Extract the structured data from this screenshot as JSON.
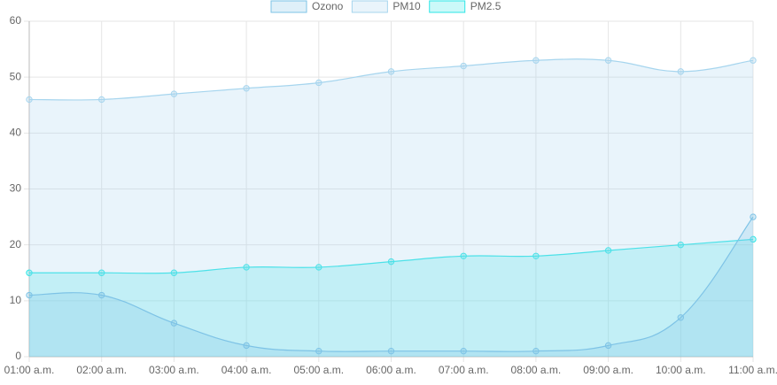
{
  "chart_data": {
    "type": "line",
    "categories": [
      "01:00 a.m.",
      "02:00 a.m.",
      "03:00 a.m.",
      "04:00 a.m.",
      "05:00 a.m.",
      "06:00 a.m.",
      "07:00 a.m.",
      "08:00 a.m.",
      "09:00 a.m.",
      "10:00 a.m.",
      "11:00 a.m."
    ],
    "series": [
      {
        "name": "Ozono",
        "color": "#7ec3e6",
        "values": [
          11,
          11,
          6,
          2,
          1,
          1,
          1,
          1,
          2,
          7,
          25
        ]
      },
      {
        "name": "PM10",
        "color": "#a6d5ee",
        "values": [
          46,
          46,
          47,
          48,
          49,
          51,
          52,
          53,
          53,
          51,
          53
        ]
      },
      {
        "name": "PM2.5",
        "color": "#2ee6e6",
        "values": [
          15,
          15,
          15,
          16,
          16,
          17,
          18,
          18,
          19,
          20,
          21
        ]
      }
    ],
    "ylim": [
      0,
      60
    ],
    "yticks": [
      0,
      10,
      20,
      30,
      40,
      50,
      60
    ],
    "grid": true,
    "legend": "top"
  }
}
